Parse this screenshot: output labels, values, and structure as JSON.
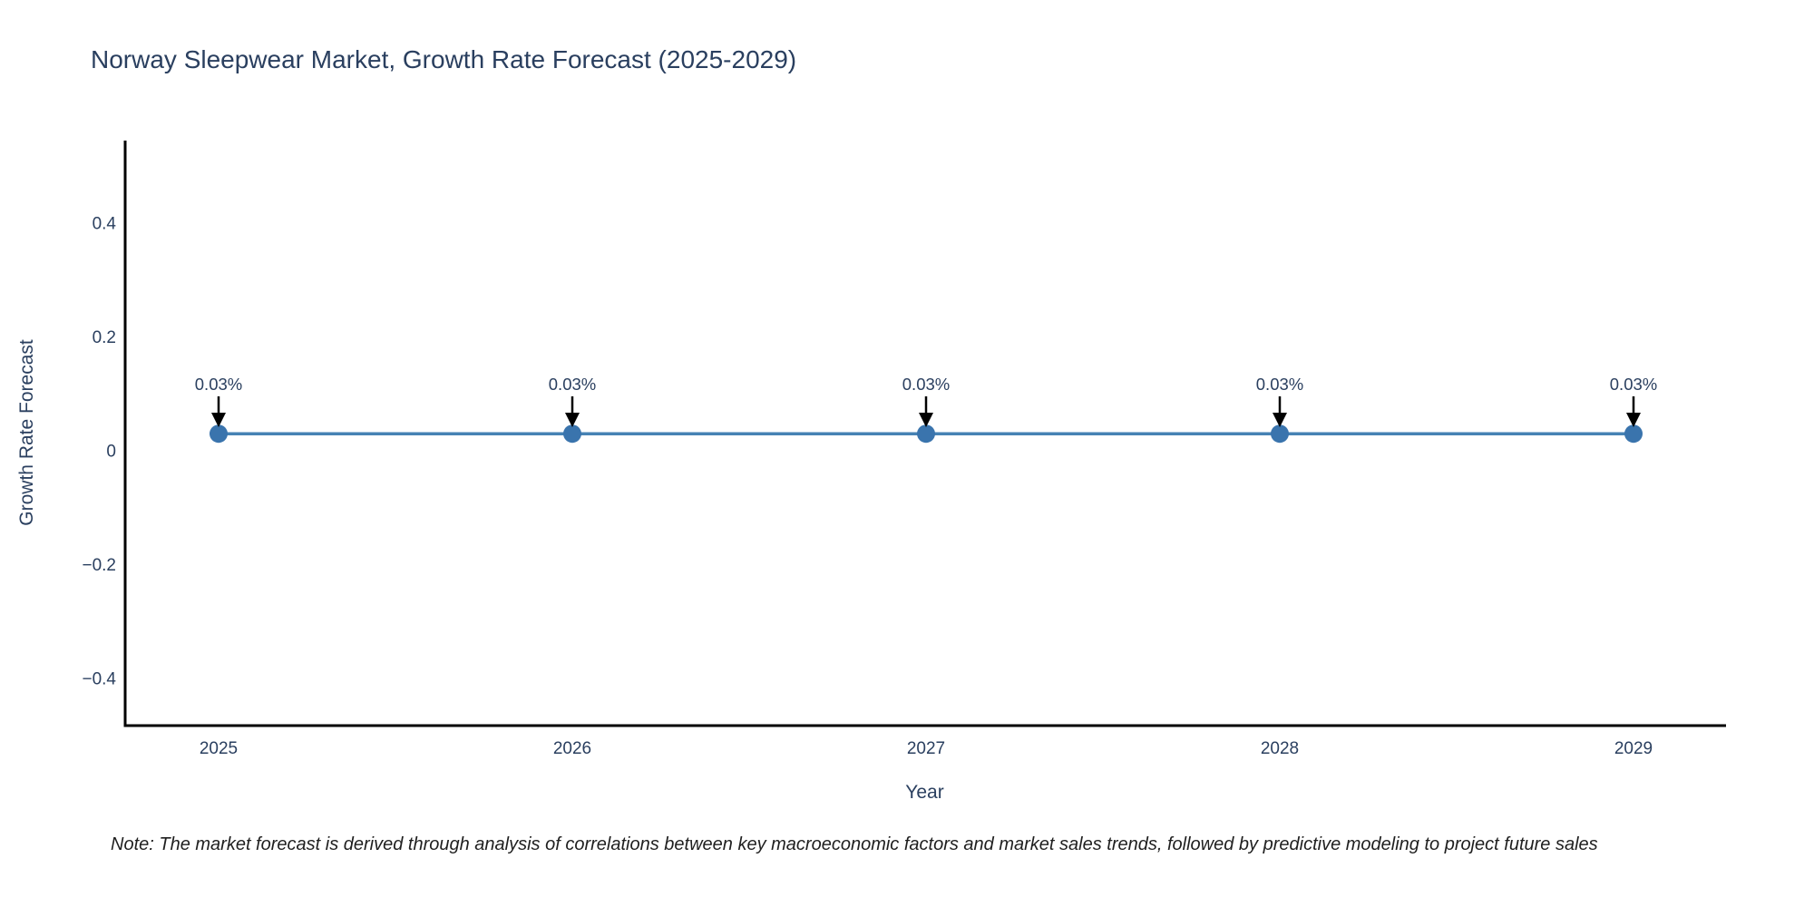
{
  "title": "Norway Sleepwear Market, Growth Rate Forecast (2025-2029)",
  "note": "Note: The market forecast is derived through analysis of correlations between key macroeconomic factors and market sales trends, followed by predictive modeling to project future sales",
  "chart_data": {
    "type": "line",
    "title": "Norway Sleepwear Market, Growth Rate Forecast (2025-2029)",
    "xlabel": "Year",
    "ylabel": "Growth Rate Forecast",
    "categories": [
      "2025",
      "2026",
      "2027",
      "2028",
      "2029"
    ],
    "series": [
      {
        "name": "Growth Rate Forecast",
        "values": [
          0.03,
          0.03,
          0.03,
          0.03,
          0.03
        ],
        "unit": "percent"
      }
    ],
    "point_labels": [
      "0.03%",
      "0.03%",
      "0.03%",
      "0.03%",
      "0.03%"
    ],
    "yticks": [
      0.4,
      0.2,
      0,
      -0.2,
      -0.4
    ],
    "ylim": [
      -0.48,
      0.55
    ],
    "grid": false,
    "legend_position": "none",
    "annotation_style": "down-arrow-to-point"
  },
  "colors": {
    "background": "#ffffff",
    "text": "#2a3f5f",
    "note_text": "#1f1f1f",
    "line": "#4682b4",
    "marker": "#3a74ad",
    "axis": "#000000",
    "arrow": "#000000"
  }
}
